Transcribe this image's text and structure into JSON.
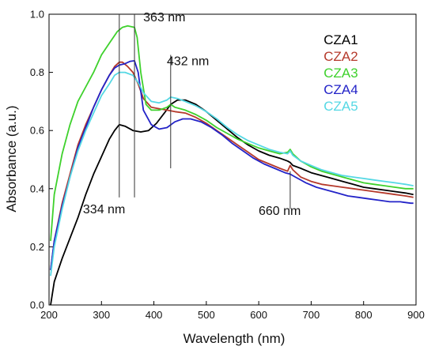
{
  "chart_data": {
    "type": "line",
    "title": "",
    "xlabel": "Wavelength (nm)",
    "ylabel": "Absorbance (a.u.)",
    "xlim": [
      200,
      900
    ],
    "ylim": [
      0.0,
      1.0
    ],
    "xticks": [
      200,
      300,
      400,
      500,
      600,
      700,
      800,
      900
    ],
    "yticks": [
      0.0,
      0.2,
      0.4,
      0.6,
      0.8,
      1.0
    ],
    "grid": false,
    "legend": "top-right",
    "series": [
      {
        "name": "CZA1",
        "color": "#000000",
        "x": [
          203,
          210,
          225,
          240,
          255,
          270,
          285,
          300,
          315,
          325,
          334,
          345,
          360,
          375,
          390,
          405,
          420,
          432,
          445,
          460,
          480,
          500,
          520,
          540,
          560,
          580,
          600,
          620,
          640,
          655,
          660,
          665,
          680,
          700,
          720,
          740,
          760,
          780,
          800,
          820,
          840,
          860,
          880,
          895
        ],
        "y": [
          0.0,
          0.08,
          0.16,
          0.23,
          0.3,
          0.38,
          0.45,
          0.51,
          0.57,
          0.6,
          0.62,
          0.615,
          0.6,
          0.595,
          0.6,
          0.625,
          0.66,
          0.69,
          0.705,
          0.705,
          0.69,
          0.665,
          0.635,
          0.605,
          0.575,
          0.55,
          0.53,
          0.515,
          0.505,
          0.495,
          0.49,
          0.48,
          0.47,
          0.455,
          0.445,
          0.435,
          0.425,
          0.415,
          0.405,
          0.4,
          0.395,
          0.39,
          0.385,
          0.38
        ]
      },
      {
        "name": "CZA2",
        "color": "#b5392b",
        "x": [
          203,
          210,
          225,
          240,
          255,
          270,
          285,
          300,
          315,
          325,
          334,
          340,
          350,
          360,
          370,
          380,
          395,
          410,
          425,
          440,
          460,
          480,
          500,
          520,
          540,
          560,
          580,
          600,
          620,
          640,
          655,
          660,
          665,
          680,
          700,
          720,
          740,
          760,
          780,
          800,
          820,
          840,
          860,
          880,
          895
        ],
        "y": [
          0.12,
          0.22,
          0.35,
          0.45,
          0.55,
          0.62,
          0.68,
          0.74,
          0.79,
          0.82,
          0.835,
          0.835,
          0.82,
          0.8,
          0.76,
          0.71,
          0.68,
          0.675,
          0.67,
          0.665,
          0.66,
          0.645,
          0.625,
          0.6,
          0.575,
          0.55,
          0.525,
          0.5,
          0.485,
          0.47,
          0.46,
          0.48,
          0.465,
          0.44,
          0.425,
          0.415,
          0.41,
          0.405,
          0.4,
          0.395,
          0.39,
          0.385,
          0.38,
          0.375,
          0.37
        ]
      },
      {
        "name": "CZA3",
        "color": "#3ed12c",
        "x": [
          203,
          210,
          225,
          240,
          255,
          270,
          285,
          300,
          315,
          330,
          340,
          350,
          363,
          368,
          375,
          385,
          395,
          410,
          425,
          432,
          440,
          460,
          480,
          500,
          520,
          540,
          560,
          580,
          600,
          620,
          640,
          655,
          660,
          665,
          680,
          700,
          720,
          740,
          760,
          780,
          800,
          820,
          840,
          860,
          880,
          895
        ],
        "y": [
          0.22,
          0.38,
          0.52,
          0.62,
          0.7,
          0.75,
          0.8,
          0.86,
          0.9,
          0.94,
          0.955,
          0.96,
          0.955,
          0.92,
          0.8,
          0.69,
          0.67,
          0.67,
          0.68,
          0.69,
          0.68,
          0.67,
          0.655,
          0.635,
          0.61,
          0.59,
          0.57,
          0.555,
          0.54,
          0.53,
          0.52,
          0.525,
          0.535,
          0.52,
          0.495,
          0.475,
          0.46,
          0.45,
          0.44,
          0.43,
          0.42,
          0.415,
          0.41,
          0.405,
          0.4,
          0.4
        ]
      },
      {
        "name": "CZA4",
        "color": "#2323c8",
        "x": [
          203,
          210,
          225,
          240,
          255,
          270,
          285,
          300,
          315,
          325,
          334,
          345,
          355,
          363,
          370,
          380,
          395,
          410,
          425,
          440,
          455,
          470,
          490,
          510,
          530,
          550,
          570,
          590,
          610,
          630,
          650,
          660,
          670,
          690,
          710,
          730,
          750,
          770,
          790,
          810,
          830,
          850,
          870,
          890,
          895
        ],
        "y": [
          0.12,
          0.22,
          0.34,
          0.44,
          0.54,
          0.61,
          0.68,
          0.74,
          0.79,
          0.815,
          0.825,
          0.83,
          0.838,
          0.84,
          0.8,
          0.67,
          0.62,
          0.605,
          0.61,
          0.63,
          0.64,
          0.64,
          0.63,
          0.61,
          0.585,
          0.555,
          0.53,
          0.505,
          0.485,
          0.47,
          0.455,
          0.45,
          0.44,
          0.42,
          0.405,
          0.395,
          0.385,
          0.375,
          0.37,
          0.365,
          0.36,
          0.355,
          0.355,
          0.35,
          0.35
        ]
      },
      {
        "name": "CZA5",
        "color": "#55d8e4",
        "x": [
          203,
          210,
          225,
          240,
          255,
          270,
          285,
          300,
          315,
          325,
          334,
          345,
          360,
          370,
          380,
          395,
          410,
          425,
          432,
          445,
          460,
          480,
          500,
          520,
          540,
          560,
          580,
          600,
          620,
          640,
          655,
          660,
          665,
          680,
          700,
          720,
          740,
          760,
          780,
          800,
          820,
          840,
          860,
          880,
          895
        ],
        "y": [
          0.1,
          0.2,
          0.33,
          0.44,
          0.53,
          0.6,
          0.66,
          0.72,
          0.76,
          0.79,
          0.8,
          0.8,
          0.79,
          0.765,
          0.73,
          0.7,
          0.695,
          0.705,
          0.715,
          0.71,
          0.7,
          0.685,
          0.665,
          0.64,
          0.61,
          0.585,
          0.565,
          0.55,
          0.535,
          0.525,
          0.52,
          0.53,
          0.515,
          0.495,
          0.48,
          0.465,
          0.455,
          0.445,
          0.44,
          0.435,
          0.43,
          0.425,
          0.42,
          0.415,
          0.41
        ]
      }
    ],
    "annotations": [
      {
        "label": "334 nm",
        "x": 334,
        "y_from": 0.37,
        "y_to": 1.0,
        "label_x": 305,
        "label_y": 0.315
      },
      {
        "label": "363 nm",
        "x": 363,
        "y_from": 0.37,
        "y_to": 1.0,
        "label_x": 420,
        "label_y": 0.975
      },
      {
        "label": "432 nm",
        "x": 432,
        "y_from": 0.47,
        "y_to": 0.86,
        "label_x": 465,
        "label_y": 0.825
      },
      {
        "label": "660 nm",
        "x": 660,
        "y_from": 0.33,
        "y_to": 0.46,
        "label_x": 640,
        "label_y": 0.31
      }
    ]
  }
}
